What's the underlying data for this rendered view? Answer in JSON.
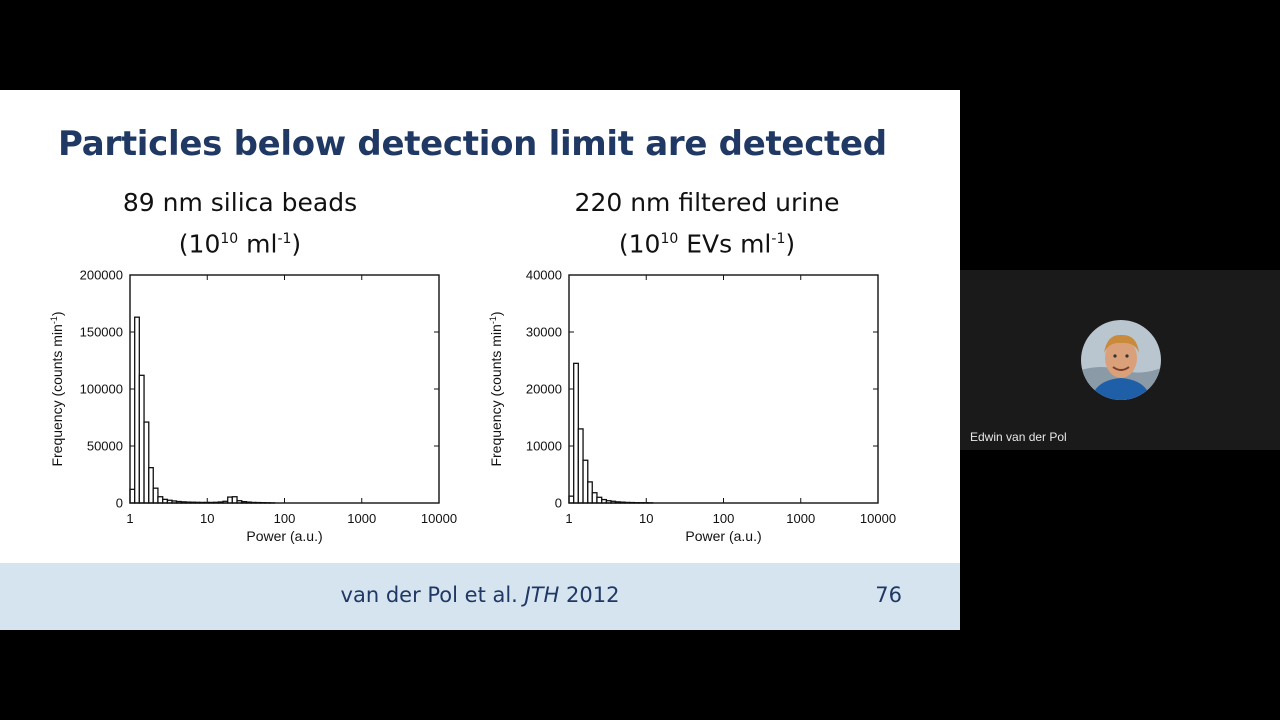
{
  "slide": {
    "title": "Particles below detection limit are detected",
    "panel_left": {
      "line1": "89 nm silica beads",
      "paren_open": "(10",
      "sup1": "10",
      "unit": " ml",
      "sup2": "-1",
      "paren_close": ")"
    },
    "panel_right": {
      "line1": "220 nm filtered urine",
      "paren_open": "(10",
      "sup1": "10",
      "unit": " EVs ml",
      "sup2": "-1",
      "paren_close": ")"
    },
    "footer": {
      "authors": "van der Pol et al. ",
      "journal": "JTH",
      "year": " 2012",
      "slide_number": "76"
    }
  },
  "participant": {
    "name": "Edwin van der Pol"
  },
  "colors": {
    "title": "#1f3864",
    "footer_band": "#d6e4f0",
    "tile": "#1a1a1a"
  },
  "chart_data": [
    {
      "type": "bar",
      "x_scale": "log",
      "xlim": [
        1,
        10000
      ],
      "ylim": [
        0,
        200000
      ],
      "xlabel": "Power (a.u.)",
      "ylabel": "Frequency (counts min",
      "ylabel_sup": "-1",
      "ylabel_end": ")",
      "xticks": [
        "1",
        "10",
        "100",
        "1000",
        "10000"
      ],
      "yticks": [
        "0",
        "50000",
        "100000",
        "150000",
        "200000"
      ],
      "bin_edges": [
        1.0,
        1.15,
        1.32,
        1.52,
        1.75,
        2.0,
        2.3,
        2.65,
        3.05,
        3.5,
        4.0,
        4.6,
        5.3,
        6.1,
        7.0,
        8.0,
        9.2,
        10.5,
        12.1,
        13.9,
        16.0,
        18.4,
        21.1,
        24.3,
        28.0,
        32.2,
        37.0,
        42.5,
        48.9,
        56.2,
        64.6,
        74.3
      ],
      "values": [
        12000,
        163000,
        112000,
        71000,
        31000,
        13000,
        5500,
        3200,
        2400,
        1800,
        1300,
        1000,
        800,
        700,
        600,
        500,
        500,
        500,
        600,
        900,
        1500,
        5200,
        5500,
        2000,
        1200,
        800,
        500,
        400,
        300,
        200,
        100
      ]
    },
    {
      "type": "bar",
      "x_scale": "log",
      "xlim": [
        1,
        10000
      ],
      "ylim": [
        0,
        40000
      ],
      "xlabel": "Power (a.u.)",
      "ylabel": "Frequency (counts min",
      "ylabel_sup": "-1",
      "ylabel_end": ")",
      "xticks": [
        "1",
        "10",
        "100",
        "1000",
        "10000"
      ],
      "yticks": [
        "0",
        "10000",
        "20000",
        "30000",
        "40000"
      ],
      "bin_edges": [
        1.0,
        1.15,
        1.32,
        1.52,
        1.75,
        2.0,
        2.3,
        2.65,
        3.05,
        3.5,
        4.0,
        4.6,
        5.3,
        6.1,
        7.0,
        8.0,
        9.2,
        10.5,
        12.1
      ],
      "values": [
        1200,
        24500,
        13000,
        7500,
        3700,
        1800,
        1000,
        600,
        400,
        300,
        200,
        150,
        100,
        80,
        60,
        50,
        40,
        30
      ]
    }
  ]
}
